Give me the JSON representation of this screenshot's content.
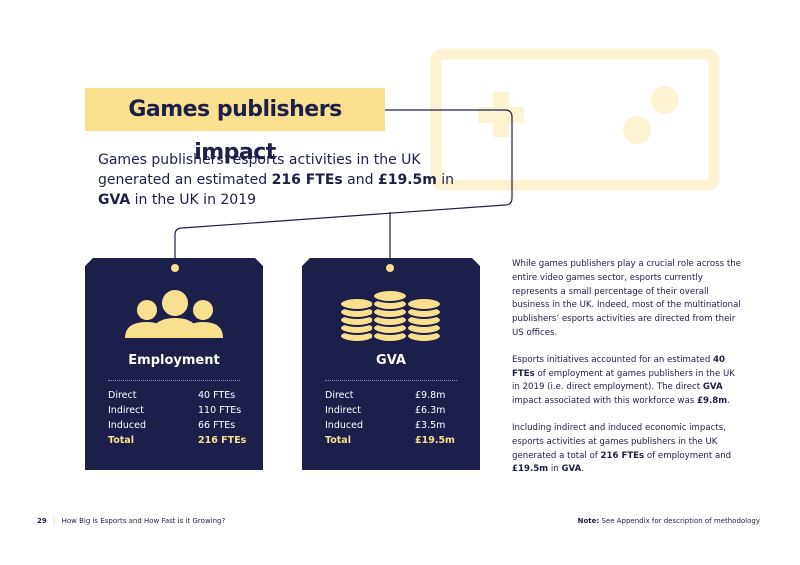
{
  "title": "Games publishers impact",
  "subtitle": [
    "Games publishers’ esports activities in the UK generated an estimated ",
    "216 FTEs",
    " and ",
    "£19.5m",
    " in ",
    "GVA",
    " in the UK in 2019"
  ],
  "cards": [
    {
      "title": "Employment",
      "rows": [
        [
          "Direct",
          "40 FTEs"
        ],
        [
          "Indirect",
          "110 FTEs"
        ],
        [
          "Induced",
          "66 FTEs"
        ],
        [
          "Total",
          "216 FTEs"
        ]
      ]
    },
    {
      "title": "GVA",
      "rows": [
        [
          "Direct",
          "£9.8m"
        ],
        [
          "Indirect",
          "£6.3m"
        ],
        [
          "Induced",
          "£3.5m"
        ],
        [
          "Total",
          "£19.5m"
        ]
      ]
    }
  ],
  "body": [
    [
      "While games publishers play a crucial role across the entire video games sector, esports currently represents a small percentage of their overall business in the UK. Indeed, most of the multinational publishers’ esports activities are directed from their US offices."
    ],
    [
      "Esports initiatives accounted for an estimated ",
      "40 FTEs",
      " of employment at games publishers in the UK in 2019 (i.e. direct employment). The direct ",
      "GVA",
      " impact associated with this workforce was ",
      "£9.8m",
      "."
    ],
    [
      "Including indirect and induced economic impacts, esports activities at games publishers in the UK generated a total of ",
      "216 FTEs",
      " of employment and ",
      "£19.5m",
      " in ",
      "GVA",
      "."
    ]
  ],
  "footer": {
    "page": "29",
    "title": "How Big is Esports and How Fast is it Growing?",
    "note_label": "Note:",
    "note": "See Appendix for description of methodology"
  }
}
